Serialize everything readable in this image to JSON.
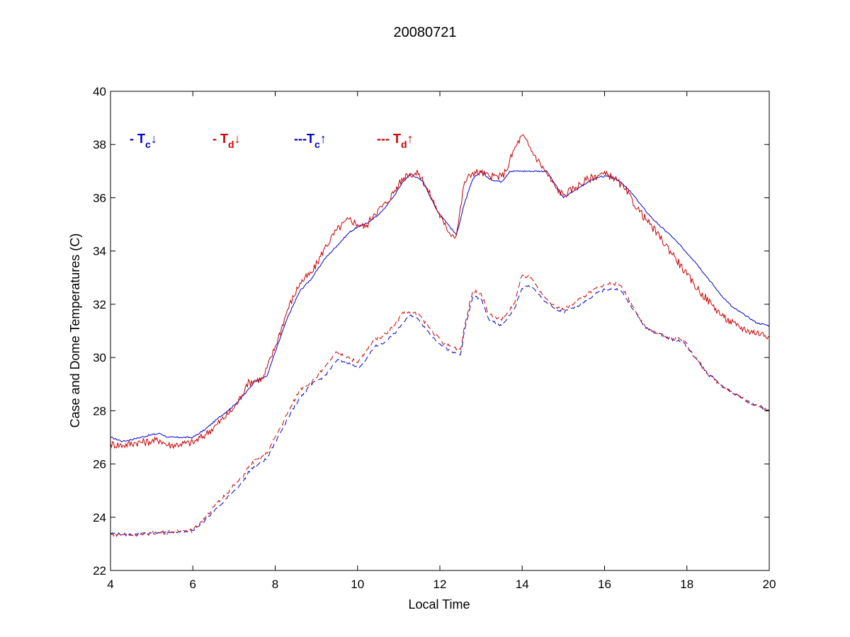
{
  "chart_data": {
    "type": "line",
    "title": "20080721",
    "xlabel": "Local Time",
    "ylabel": "Case and Dome Temperatures (C)",
    "xlim": [
      4,
      20
    ],
    "ylim": [
      22,
      40
    ],
    "xticks": [
      4,
      6,
      8,
      10,
      12,
      14,
      16,
      18,
      20
    ],
    "yticks": [
      22,
      24,
      26,
      28,
      30,
      32,
      34,
      36,
      38,
      40
    ],
    "grid": false,
    "legend_position": "top-left inside axes",
    "legend": [
      {
        "prefix": "- T",
        "sub": "c",
        "arrow": "↓",
        "color": "#0000cc"
      },
      {
        "prefix": "- T",
        "sub": "d",
        "arrow": "↓",
        "color": "#cc0000"
      },
      {
        "prefix": "---T",
        "sub": "c",
        "arrow": "↑",
        "color": "#0000cc"
      },
      {
        "prefix": "--- T",
        "sub": "d",
        "arrow": "↑",
        "color": "#cc0000"
      }
    ],
    "series": [
      {
        "color": "#0000cc",
        "dash": "solid",
        "jitter": 0.03,
        "x": [
          4.0,
          4.3,
          4.6,
          5.0,
          5.2,
          5.4,
          5.7,
          6.0,
          6.3,
          6.6,
          7.0,
          7.3,
          7.5,
          7.8,
          8.0,
          8.3,
          8.6,
          8.9,
          9.2,
          9.5,
          9.8,
          10.0,
          10.3,
          10.6,
          10.9,
          11.1,
          11.3,
          11.6,
          11.9,
          12.2,
          12.4,
          12.6,
          12.8,
          13.0,
          13.2,
          13.5,
          13.7,
          14.0,
          14.3,
          14.6,
          14.8,
          15.0,
          15.3,
          15.6,
          15.9,
          16.1,
          16.4,
          16.7,
          17.0,
          17.3,
          17.6,
          17.9,
          18.2,
          18.5,
          18.8,
          19.1,
          19.4,
          19.7,
          20.0
        ],
        "y": [
          27.0,
          26.85,
          26.95,
          27.1,
          27.15,
          27.0,
          27.0,
          27.0,
          27.3,
          27.7,
          28.2,
          28.7,
          29.1,
          29.3,
          30.2,
          31.5,
          32.5,
          33.0,
          33.7,
          34.2,
          34.7,
          34.9,
          35.1,
          35.5,
          36.1,
          36.6,
          36.9,
          36.6,
          35.6,
          35.0,
          34.6,
          35.8,
          36.7,
          37.0,
          36.7,
          36.6,
          37.0,
          37.0,
          37.0,
          37.0,
          36.5,
          36.0,
          36.3,
          36.6,
          36.8,
          36.8,
          36.6,
          36.1,
          35.5,
          35.0,
          34.6,
          34.1,
          33.6,
          33.0,
          32.4,
          31.9,
          31.6,
          31.3,
          31.2
        ]
      },
      {
        "color": "#cc0000",
        "dash": "solid",
        "jitter": 0.15,
        "x": [
          4.0,
          4.3,
          4.6,
          5.0,
          5.2,
          5.4,
          5.7,
          6.0,
          6.3,
          6.6,
          7.0,
          7.2,
          7.3,
          7.5,
          7.7,
          8.0,
          8.3,
          8.6,
          8.9,
          9.2,
          9.5,
          9.8,
          10.0,
          10.2,
          10.4,
          10.7,
          11.0,
          11.2,
          11.5,
          11.8,
          12.1,
          12.3,
          12.4,
          12.6,
          12.8,
          13.0,
          13.2,
          13.5,
          13.6,
          13.8,
          14.0,
          14.3,
          14.6,
          14.8,
          15.0,
          15.3,
          15.6,
          15.9,
          16.2,
          16.5,
          16.8,
          17.1,
          17.4,
          17.7,
          18.0,
          18.3,
          18.6,
          18.9,
          19.2,
          19.5,
          19.8,
          20.0
        ],
        "y": [
          26.75,
          26.7,
          26.8,
          26.85,
          26.9,
          26.7,
          26.75,
          26.8,
          27.1,
          27.5,
          28.1,
          28.6,
          29.0,
          29.15,
          29.2,
          30.4,
          31.8,
          32.8,
          33.2,
          34.1,
          34.8,
          35.2,
          35.0,
          34.9,
          35.4,
          35.8,
          36.5,
          36.9,
          36.9,
          36.0,
          35.0,
          34.6,
          34.6,
          36.6,
          36.95,
          36.95,
          36.8,
          36.8,
          37.0,
          37.8,
          38.35,
          37.6,
          36.9,
          36.4,
          36.1,
          36.4,
          36.7,
          36.9,
          36.8,
          36.3,
          35.6,
          35.0,
          34.4,
          33.8,
          33.1,
          32.5,
          32.0,
          31.5,
          31.2,
          31.0,
          30.9,
          30.8
        ]
      },
      {
        "color": "#0000cc",
        "dash": "dashed",
        "jitter": 0.05,
        "x": [
          4.0,
          4.3,
          4.6,
          5.0,
          5.5,
          6.0,
          6.3,
          6.7,
          7.0,
          7.2,
          7.4,
          7.6,
          7.8,
          8.0,
          8.3,
          8.6,
          8.9,
          9.2,
          9.5,
          9.8,
          10.0,
          10.2,
          10.4,
          10.6,
          10.9,
          11.1,
          11.3,
          11.5,
          11.8,
          12.1,
          12.3,
          12.5,
          12.6,
          12.8,
          13.0,
          13.2,
          13.5,
          13.8,
          14.0,
          14.2,
          14.5,
          14.8,
          15.0,
          15.3,
          15.6,
          15.9,
          16.2,
          16.4,
          16.7,
          17.0,
          17.3,
          17.6,
          17.9,
          18.2,
          18.5,
          18.8,
          19.1,
          19.4,
          19.7,
          20.0
        ],
        "y": [
          23.4,
          23.35,
          23.35,
          23.4,
          23.45,
          23.5,
          23.9,
          24.5,
          25.0,
          25.3,
          25.8,
          26.0,
          26.2,
          26.8,
          27.7,
          28.5,
          29.0,
          29.3,
          29.9,
          29.8,
          29.6,
          29.9,
          30.4,
          30.5,
          30.9,
          31.3,
          31.6,
          31.4,
          30.8,
          30.4,
          30.2,
          30.1,
          31.0,
          32.3,
          32.2,
          31.4,
          31.2,
          31.8,
          32.6,
          32.7,
          32.2,
          31.8,
          31.7,
          31.9,
          32.2,
          32.5,
          32.6,
          32.5,
          31.8,
          31.1,
          30.9,
          30.7,
          30.6,
          30.0,
          29.4,
          29.0,
          28.7,
          28.4,
          28.2,
          28.0
        ]
      },
      {
        "color": "#cc0000",
        "dash": "dashed",
        "jitter": 0.07,
        "x": [
          4.0,
          4.3,
          4.6,
          5.0,
          5.5,
          6.0,
          6.3,
          6.7,
          7.0,
          7.2,
          7.4,
          7.6,
          7.8,
          8.0,
          8.3,
          8.6,
          8.9,
          9.2,
          9.5,
          9.8,
          10.0,
          10.2,
          10.4,
          10.6,
          10.9,
          11.1,
          11.3,
          11.5,
          11.8,
          12.1,
          12.3,
          12.5,
          12.6,
          12.8,
          13.0,
          13.2,
          13.5,
          13.8,
          14.0,
          14.2,
          14.5,
          14.8,
          15.0,
          15.3,
          15.6,
          15.9,
          16.2,
          16.4,
          16.7,
          17.0,
          17.3,
          17.6,
          17.9,
          18.2,
          18.5,
          18.8,
          19.1,
          19.4,
          19.7,
          20.0
        ],
        "y": [
          23.35,
          23.35,
          23.35,
          23.4,
          23.45,
          23.5,
          24.0,
          24.7,
          25.2,
          25.5,
          26.0,
          26.2,
          26.4,
          27.0,
          27.9,
          28.8,
          29.1,
          29.6,
          30.2,
          30.0,
          29.8,
          30.2,
          30.7,
          30.8,
          31.2,
          31.7,
          31.7,
          31.6,
          31.0,
          30.5,
          30.4,
          30.3,
          31.2,
          32.5,
          32.4,
          31.6,
          31.4,
          32.0,
          33.1,
          33.0,
          32.3,
          31.9,
          31.8,
          32.1,
          32.4,
          32.7,
          32.8,
          32.7,
          31.9,
          31.1,
          30.9,
          30.7,
          30.7,
          30.0,
          29.4,
          29.0,
          28.7,
          28.4,
          28.2,
          28.0
        ]
      }
    ]
  }
}
